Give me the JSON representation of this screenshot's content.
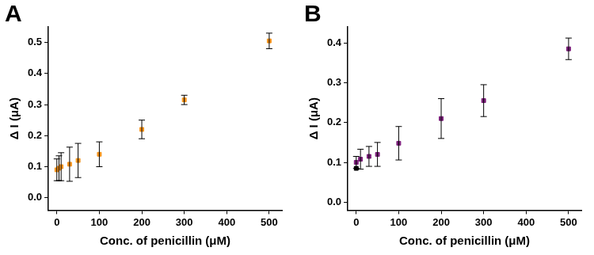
{
  "chart_data": [
    {
      "type": "scatter",
      "title": "A",
      "x_label": "Conc. of penicillin (μM)",
      "y_label": "Δ I (μA)",
      "xlim": [
        -20,
        530
      ],
      "xticks": [
        0,
        100,
        200,
        300,
        400,
        500
      ],
      "ylim": [
        -0.04,
        0.55
      ],
      "yticks": [
        {
          "value": 0,
          "label": "0.0"
        },
        0.1,
        0.2,
        0.3,
        0.4,
        0.5
      ],
      "grid": false,
      "series": [
        {
          "color": "#f7941d",
          "marker": "square",
          "x": [
            0,
            5,
            10,
            30,
            50,
            100,
            200,
            300,
            500
          ],
          "values": [
            0.09,
            0.095,
            0.1,
            0.108,
            0.12,
            0.14,
            0.22,
            0.315,
            0.505
          ],
          "errors": [
            0.035,
            0.04,
            0.045,
            0.055,
            0.055,
            0.04,
            0.03,
            0.015,
            0.025
          ]
        }
      ]
    },
    {
      "type": "scatter",
      "title": "B",
      "x_label": "Conc. of penicillin (μM)",
      "y_label": "Δ I (μA)",
      "xlim": [
        -20,
        530
      ],
      "xticks": [
        0,
        100,
        200,
        300,
        400,
        500
      ],
      "ylim": [
        -0.02,
        0.44
      ],
      "yticks": [
        {
          "value": 0,
          "label": "0.0"
        },
        0.1,
        0.2,
        0.3,
        0.4
      ],
      "grid": false,
      "series": [
        {
          "color": "#000000",
          "marker": "square",
          "x": [
            0
          ],
          "values": [
            0.085
          ]
        },
        {
          "color": "#7b1f7a",
          "marker": "square",
          "x": [
            0,
            10,
            30,
            50,
            100,
            200,
            300,
            500
          ],
          "values": [
            0.1,
            0.108,
            0.115,
            0.12,
            0.148,
            0.21,
            0.255,
            0.385
          ],
          "errors": [
            0.015,
            0.025,
            0.025,
            0.03,
            0.042,
            0.05,
            0.04,
            0.027
          ]
        }
      ]
    }
  ]
}
